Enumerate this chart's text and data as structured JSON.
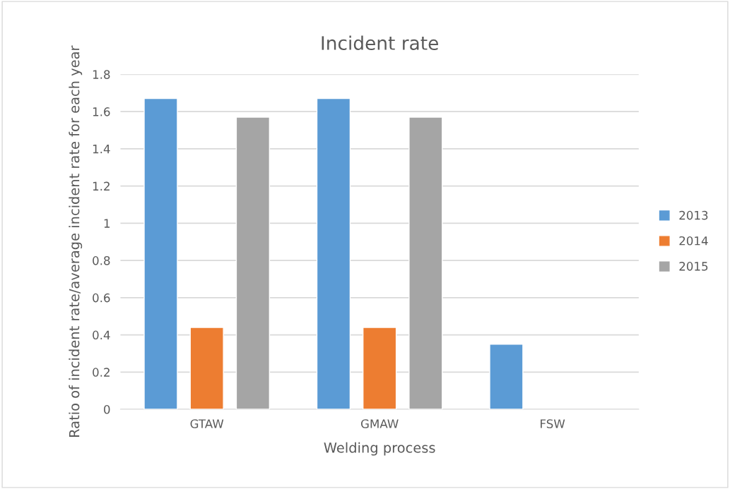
{
  "chart_data": {
    "type": "bar",
    "title": "Incident rate",
    "xlabel": "Welding process",
    "ylabel": "Ratio of incident rate/average incident rate for each year",
    "categories": [
      "GTAW",
      "GMAW",
      "FSW"
    ],
    "series": [
      {
        "name": "2013",
        "color": "#5b9bd5",
        "values": [
          1.67,
          1.67,
          0.35
        ]
      },
      {
        "name": "2014",
        "color": "#ed7d31",
        "values": [
          0.44,
          0.44,
          null
        ]
      },
      {
        "name": "2015",
        "color": "#a5a5a5",
        "values": [
          1.57,
          1.57,
          null
        ]
      }
    ],
    "ylim": [
      0,
      1.8
    ],
    "yticks": [
      0,
      0.2,
      0.4,
      0.6,
      0.8,
      {
        "value": 1,
        "label": "1"
      },
      1.2,
      1.4,
      1.6,
      1.8
    ],
    "grid": "y",
    "legend": "right"
  }
}
